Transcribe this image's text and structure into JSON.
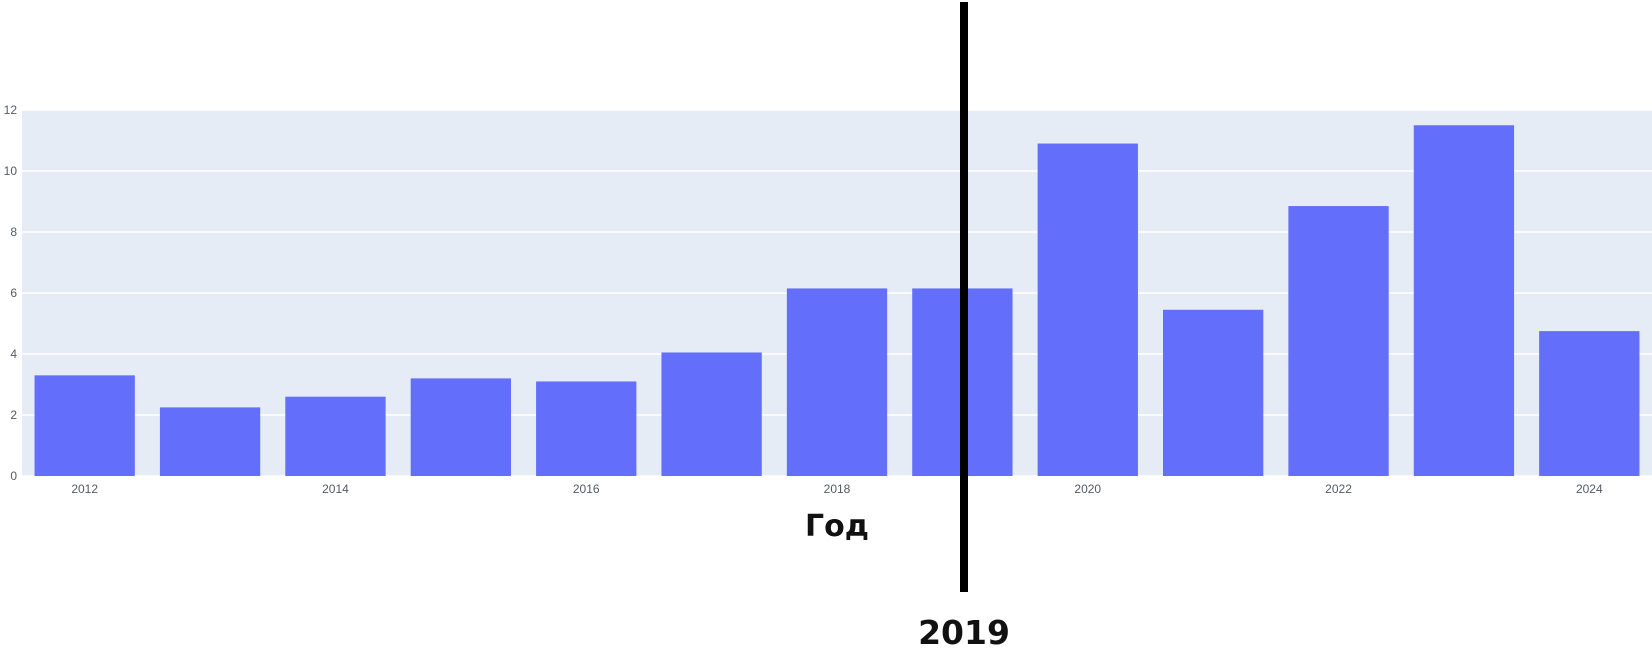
{
  "chart_data": {
    "type": "bar",
    "title": "",
    "xlabel": "Год",
    "ylabel": "",
    "x": [
      2012,
      2013,
      2014,
      2015,
      2016,
      2017,
      2018,
      2019,
      2020,
      2021,
      2022,
      2023,
      2024
    ],
    "values": [
      3.3,
      2.25,
      2.6,
      3.2,
      3.1,
      4.05,
      6.15,
      6.15,
      10.9,
      5.45,
      8.85,
      11.5,
      4.75
    ],
    "xlim": [
      2011.5,
      2024.5
    ],
    "ylim": [
      0,
      12
    ],
    "x_tick_labels": [
      "2012",
      "2014",
      "2016",
      "2018",
      "2020",
      "2022",
      "2024"
    ],
    "y_tick_labels": [
      "0",
      "2",
      "4",
      "6",
      "8",
      "10",
      "12"
    ],
    "grid": true,
    "legend": "none",
    "annotations": [
      {
        "type": "vertical-line",
        "x": 2019,
        "label": "2019"
      }
    ],
    "colors": {
      "bar": "#636efa",
      "plot_background": "#e5ecf6",
      "gridline": "#ffffff",
      "marker_line": "#000000",
      "tick_text": "#555a66",
      "label_text": "#111111"
    }
  }
}
